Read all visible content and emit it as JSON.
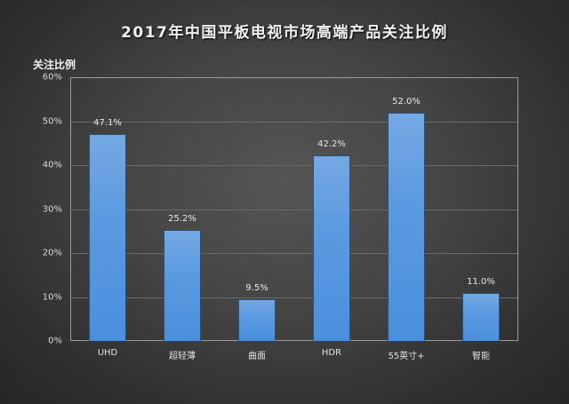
{
  "chart_data": {
    "type": "bar",
    "title": "2017年中国平板电视市场高端产品关注比例",
    "xlabel": "",
    "ylabel": "关注比例",
    "ylim": [
      0,
      60
    ],
    "yticks": [
      "0%",
      "10%",
      "20%",
      "30%",
      "40%",
      "50%",
      "60%"
    ],
    "grid": true,
    "legend": null,
    "categories": [
      "UHD",
      "超轻薄",
      "曲面",
      "HDR",
      "55英寸+",
      "智能"
    ],
    "values": [
      47.1,
      25.2,
      9.5,
      42.2,
      52.0,
      11.0
    ],
    "data_labels": [
      "47.1%",
      "25.2%",
      "9.5%",
      "42.2%",
      "52.0%",
      "11.0%"
    ],
    "bar_color": "#5b9ae0"
  }
}
